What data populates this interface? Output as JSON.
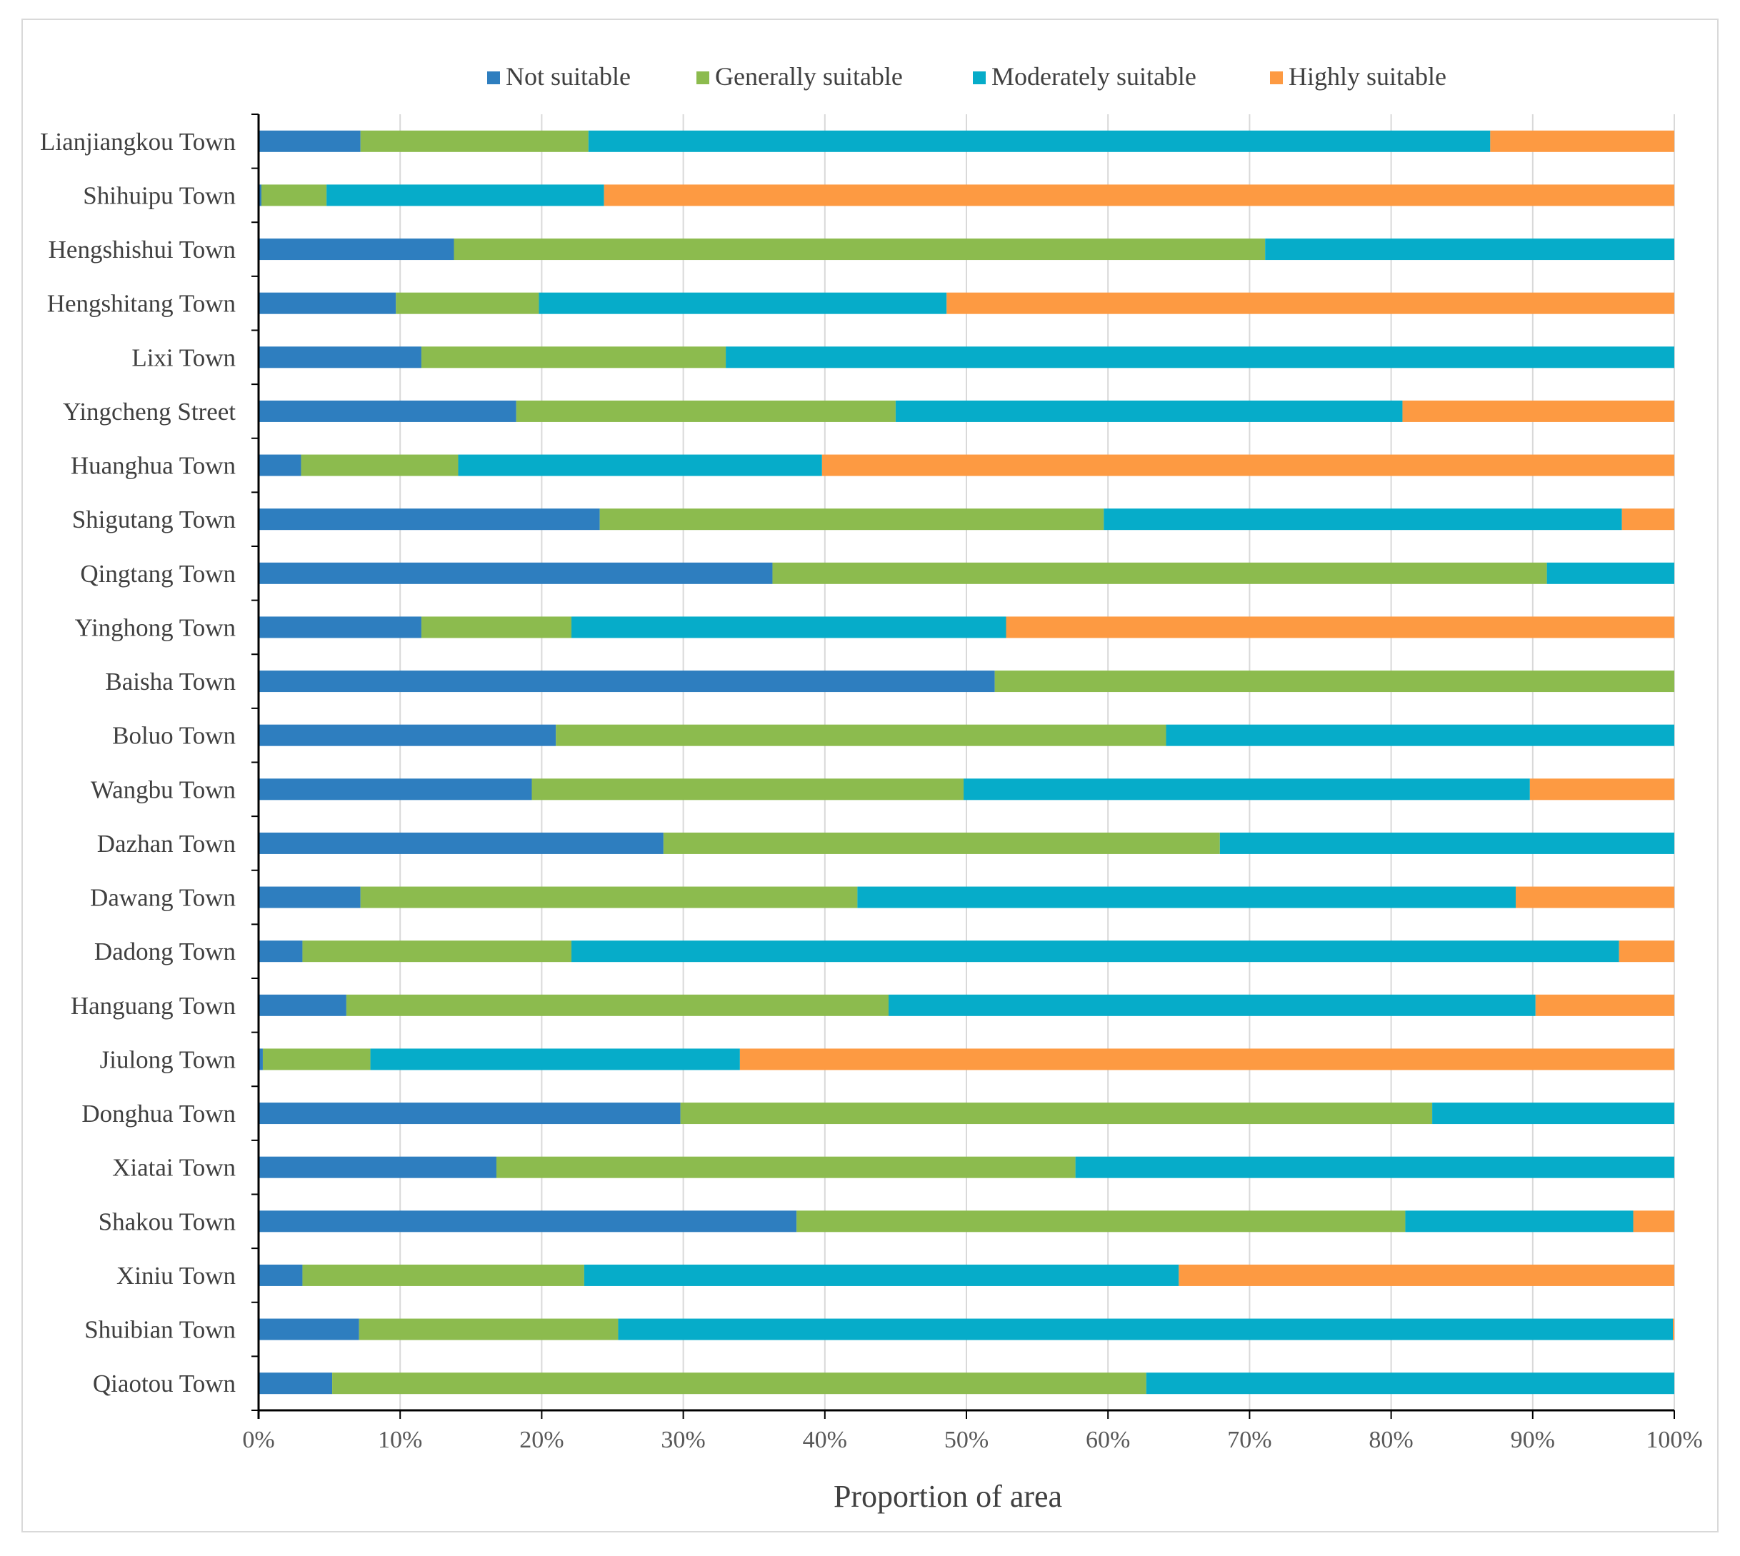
{
  "chart_data": {
    "type": "bar",
    "orientation": "horizontal",
    "stacked": "percent",
    "title": "",
    "xlabel": "Proportion  of area",
    "ylabel": "",
    "xlim": [
      0,
      100
    ],
    "x_ticks": [
      "0%",
      "10%",
      "20%",
      "30%",
      "40%",
      "50%",
      "60%",
      "70%",
      "80%",
      "90%",
      "100%"
    ],
    "grid": "vertical",
    "legend_position": "top",
    "categories": [
      "Lianjiangkou Town",
      "Shihuipu Town",
      "Hengshishui Town",
      "Hengshitang Town",
      "Lixi Town",
      "Yingcheng Street",
      "Huanghua Town",
      "Shigutang Town",
      "Qingtang Town",
      "Yinghong Town",
      "Baisha Town",
      "Boluo Town",
      "Wangbu Town",
      "Dazhan Town",
      "Dawang Town",
      "Dadong Town",
      "Hanguang Town",
      "Jiulong Town",
      "Donghua Town",
      "Xiatai Town",
      "Shakou Town",
      "Xiniu Town",
      "Shuibian Town",
      "Qiaotou Town"
    ],
    "series": [
      {
        "name": "Not suitable",
        "color": "#2e7ebf",
        "values": [
          7.2,
          0.2,
          13.8,
          9.7,
          11.5,
          18.2,
          3.0,
          24.1,
          36.3,
          11.5,
          52.0,
          21.0,
          19.3,
          28.6,
          7.2,
          3.1,
          6.2,
          0.3,
          29.8,
          16.8,
          38.0,
          3.1,
          7.1,
          5.2
        ]
      },
      {
        "name": "Generally suitable",
        "color": "#8cbb4e",
        "values": [
          16.1,
          4.6,
          57.3,
          10.1,
          21.5,
          26.8,
          11.1,
          35.6,
          54.7,
          10.6,
          48.0,
          43.1,
          30.5,
          39.3,
          35.1,
          19.0,
          38.3,
          7.6,
          53.1,
          40.9,
          43.0,
          19.9,
          18.3,
          57.5
        ]
      },
      {
        "name": "Moderately suitable",
        "color": "#06acc9",
        "values": [
          63.7,
          19.6,
          28.9,
          28.8,
          67.0,
          35.8,
          25.7,
          36.6,
          9.0,
          30.7,
          0.0,
          35.9,
          40.0,
          32.1,
          46.5,
          74.0,
          45.7,
          26.1,
          17.1,
          42.3,
          16.1,
          42.0,
          74.5,
          37.3
        ]
      },
      {
        "name": "Highly suitable",
        "color": "#fd9a42",
        "values": [
          13.0,
          75.6,
          0.0,
          51.4,
          0.0,
          19.2,
          60.2,
          3.7,
          0.0,
          47.2,
          0.0,
          0.0,
          10.2,
          0.0,
          11.2,
          3.9,
          9.8,
          66.0,
          0.0,
          0.0,
          2.9,
          35.0,
          0.1,
          0.0
        ]
      }
    ]
  }
}
